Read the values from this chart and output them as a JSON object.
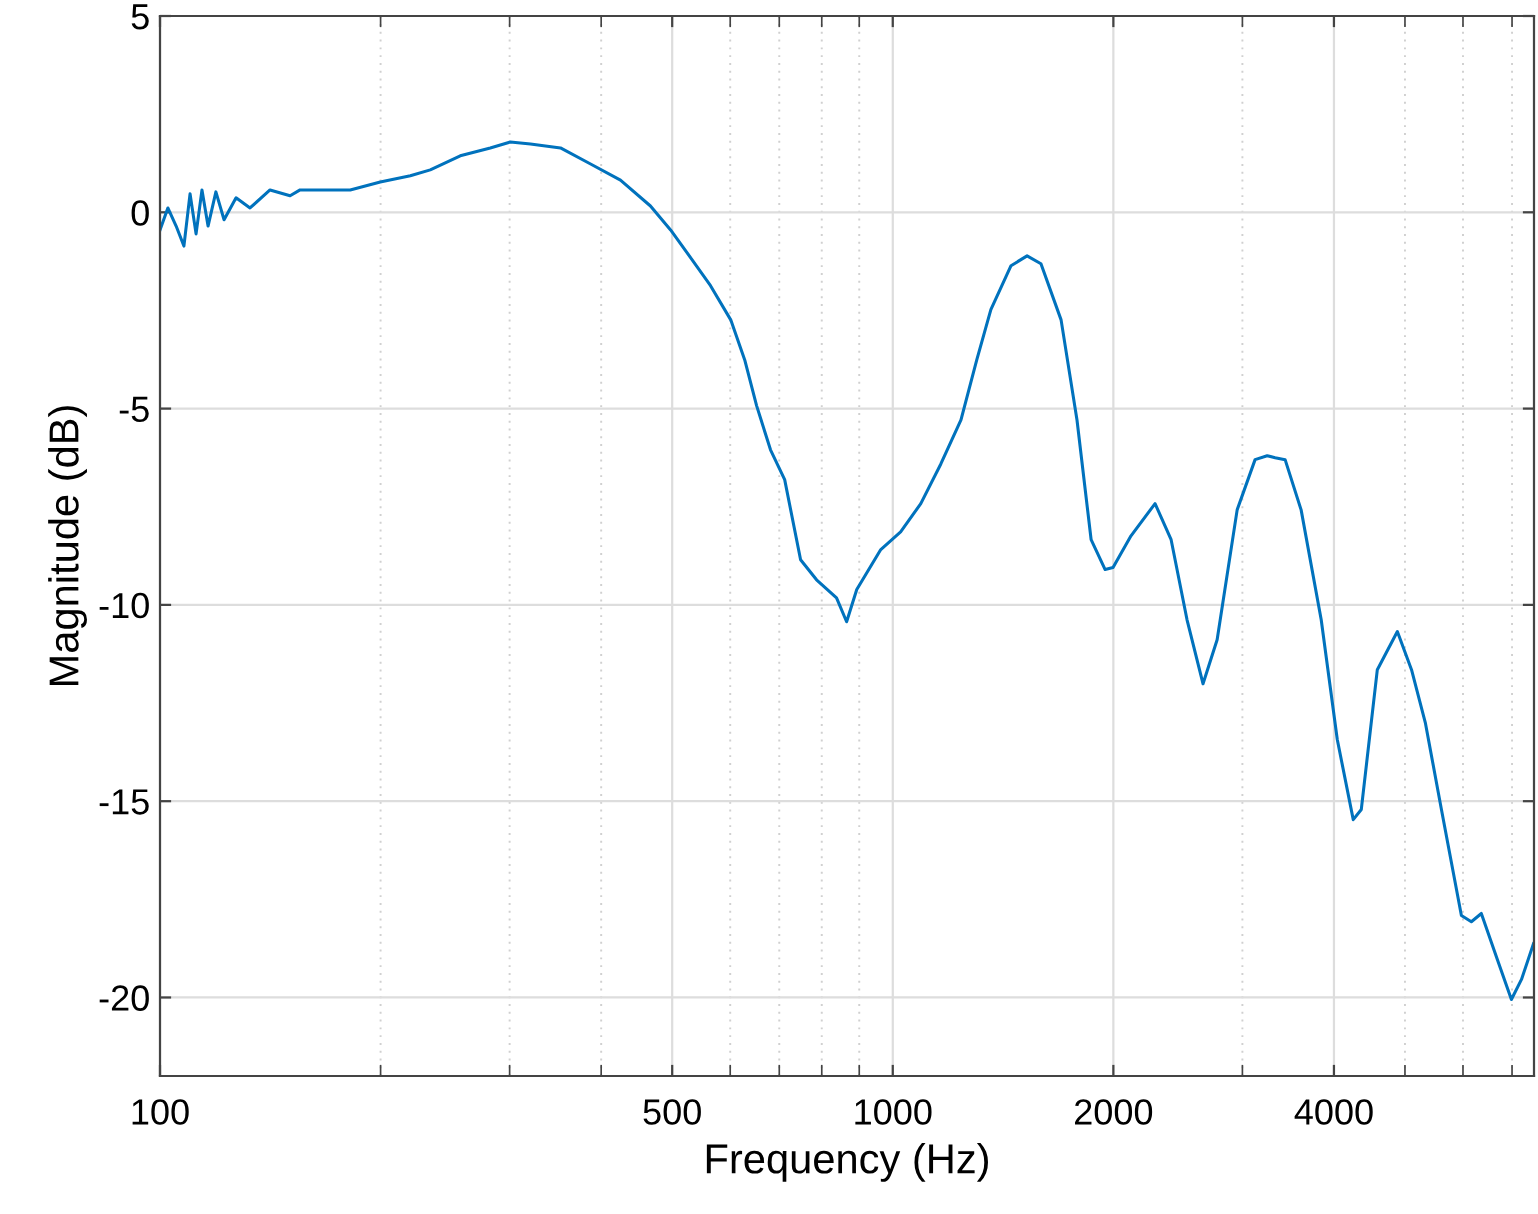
{
  "chart_data": {
    "type": "line",
    "xlabel": "Frequency (Hz)",
    "ylabel": "Magnitude (dB)",
    "log": "x",
    "grid": true,
    "line_style": "solid",
    "xlim": [
      100,
      7500
    ],
    "xticks": [
      100,
      500,
      1000,
      2000,
      4000
    ],
    "ylim": [
      -22,
      5
    ],
    "yticks": [
      -20,
      -15,
      -10,
      -5,
      0,
      5
    ],
    "series": [
      {
        "color": "#0072bd",
        "x": [
          100,
          102.5,
          105.2,
          107.8,
          109.9,
          112,
          114.1,
          116.3,
          119.2,
          122.3,
          127,
          132.7,
          141.3,
          150.5,
          155.3,
          165.5,
          181.8,
          199.8,
          219.6,
          233.8,
          256.9,
          282.3,
          300.7,
          320.3,
          352,
          386.9,
          425,
          467,
          497.5,
          530,
          564,
          601,
          628,
          652,
          681,
          712,
          748.5,
          787,
          838,
          865,
          893,
          963,
          1025,
          1092,
          1163,
          1239,
          1302,
          1361,
          1450,
          1525,
          1593,
          1697,
          1784,
          1865,
          1949,
          1998,
          2114,
          2280,
          2398,
          2521,
          2651,
          2771,
          2951,
          3122,
          3243,
          3325,
          3431,
          3608,
          3843,
          4042,
          4250,
          4359,
          4584,
          4882,
          5104,
          5333,
          5607,
          5970,
          6160,
          6356,
          6684,
          6986,
          7211,
          7488
        ],
        "values": [
          -0.45,
          0.11,
          -0.35,
          -0.86,
          0.47,
          -0.55,
          0.57,
          -0.35,
          0.52,
          -0.19,
          0.37,
          0.11,
          0.57,
          0.42,
          0.57,
          0.57,
          0.57,
          0.77,
          0.93,
          1.08,
          1.44,
          1.64,
          1.79,
          1.74,
          1.64,
          1.23,
          0.82,
          0.16,
          -0.45,
          -1.16,
          -1.87,
          -2.74,
          -3.76,
          -4.93,
          -6.05,
          -6.81,
          -8.85,
          -9.36,
          -9.82,
          -10.43,
          -9.61,
          -8.59,
          -8.14,
          -7.42,
          -6.41,
          -5.29,
          -3.76,
          -2.48,
          -1.36,
          -1.11,
          -1.31,
          -2.74,
          -5.29,
          -8.34,
          -9.1,
          -9.05,
          -8.24,
          -7.42,
          -8.34,
          -10.38,
          -12.01,
          -10.89,
          -7.58,
          -6.3,
          -6.2,
          -6.25,
          -6.3,
          -7.58,
          -10.38,
          -13.43,
          -15.47,
          -15.21,
          -11.65,
          -10.68,
          -11.65,
          -13.02,
          -15.21,
          -17.91,
          -18.07,
          -17.86,
          -19.03,
          -20.05,
          -19.54,
          -18.63
        ]
      }
    ]
  }
}
